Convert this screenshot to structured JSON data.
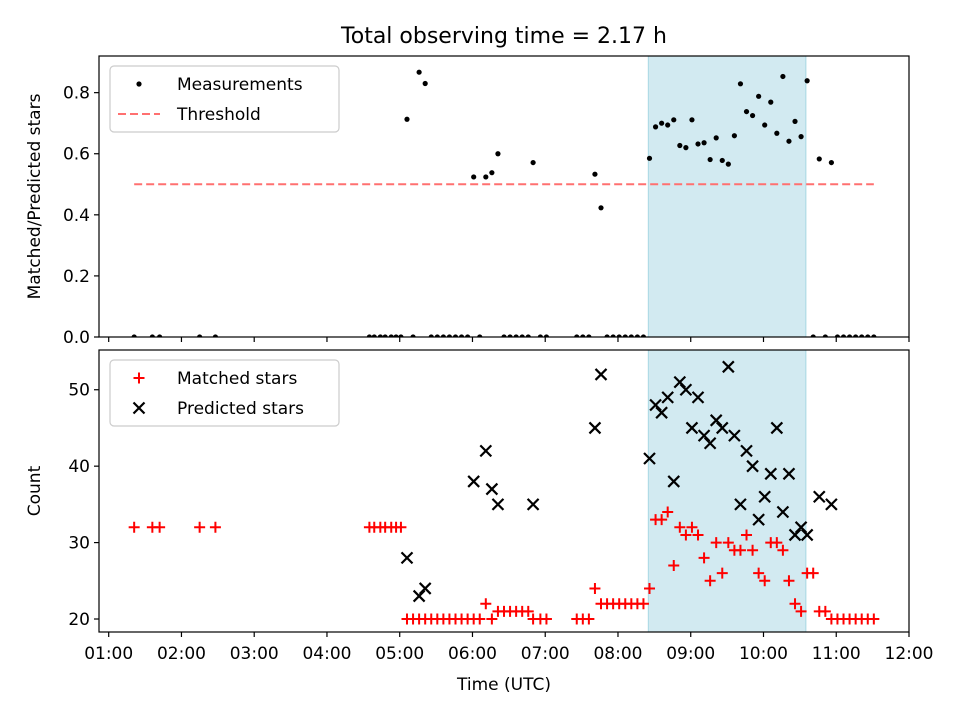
{
  "figure": {
    "title": "Total observing time = 2.17 h"
  },
  "chart_data": [
    {
      "type": "scatter",
      "title": "Total observing time = 2.17 h",
      "ylabel": "Matched/Predicted stars",
      "xlabel": "",
      "xlim": [
        "00:52",
        "12:00"
      ],
      "ylim": [
        0,
        0.92
      ],
      "yticks": [
        0.0,
        0.2,
        0.4,
        0.6,
        0.8
      ],
      "ytick_labels": [
        "0.0",
        "0.2",
        "0.4",
        "0.6",
        "0.8"
      ],
      "grid": false,
      "legend_position": "upper-left",
      "highlight_span": {
        "start": "08:25",
        "end": "10:35",
        "color": "#add8e6"
      },
      "series": [
        {
          "name": "Measurements",
          "marker": "dot",
          "color": "#000000",
          "points": [
            [
              "01:21",
              0.0
            ],
            [
              "01:36",
              0.0
            ],
            [
              "01:42",
              0.0
            ],
            [
              "02:15",
              0.0
            ],
            [
              "02:28",
              0.0
            ],
            [
              "04:35",
              0.0
            ],
            [
              "04:39",
              0.0
            ],
            [
              "04:44",
              0.0
            ],
            [
              "04:48",
              0.0
            ],
            [
              "04:53",
              0.0
            ],
            [
              "04:57",
              0.0
            ],
            [
              "05:01",
              0.0
            ],
            [
              "05:06",
              0.713
            ],
            [
              "05:11",
              0.0
            ],
            [
              "05:16",
              0.867
            ],
            [
              "05:21",
              0.83
            ],
            [
              "05:26",
              0.0
            ],
            [
              "05:31",
              0.0
            ],
            [
              "05:36",
              0.0
            ],
            [
              "05:41",
              0.0
            ],
            [
              "05:46",
              0.0
            ],
            [
              "05:51",
              0.0
            ],
            [
              "05:56",
              0.0
            ],
            [
              "06:01",
              0.524
            ],
            [
              "06:06",
              0.0
            ],
            [
              "06:11",
              0.524
            ],
            [
              "06:16",
              0.538
            ],
            [
              "06:21",
              0.6
            ],
            [
              "06:26",
              0.0
            ],
            [
              "06:31",
              0.0
            ],
            [
              "06:36",
              0.0
            ],
            [
              "06:41",
              0.0
            ],
            [
              "06:46",
              0.0
            ],
            [
              "06:50",
              0.571
            ],
            [
              "06:56",
              0.0
            ],
            [
              "07:01",
              0.0
            ],
            [
              "07:26",
              0.0
            ],
            [
              "07:31",
              0.0
            ],
            [
              "07:36",
              0.0
            ],
            [
              "07:41",
              0.533
            ],
            [
              "07:46",
              0.423
            ],
            [
              "07:51",
              0.0
            ],
            [
              "07:56",
              0.0
            ],
            [
              "08:01",
              0.0
            ],
            [
              "08:06",
              0.0
            ],
            [
              "08:11",
              0.0
            ],
            [
              "08:16",
              0.0
            ],
            [
              "08:21",
              0.0
            ],
            [
              "08:26",
              0.585
            ],
            [
              "08:31",
              0.688
            ],
            [
              "08:36",
              0.7
            ],
            [
              "08:41",
              0.694
            ],
            [
              "08:46",
              0.711
            ],
            [
              "08:51",
              0.627
            ],
            [
              "08:56",
              0.62
            ],
            [
              "09:01",
              0.711
            ],
            [
              "09:06",
              0.632
            ],
            [
              "09:11",
              0.636
            ],
            [
              "09:16",
              0.581
            ],
            [
              "09:21",
              0.652
            ],
            [
              "09:26",
              0.578
            ],
            [
              "09:31",
              0.566
            ],
            [
              "09:36",
              0.659
            ],
            [
              "09:41",
              0.829
            ],
            [
              "09:46",
              0.738
            ],
            [
              "09:51",
              0.725
            ],
            [
              "09:56",
              0.788
            ],
            [
              "10:01",
              0.694
            ],
            [
              "10:06",
              0.769
            ],
            [
              "10:11",
              0.667
            ],
            [
              "10:16",
              0.853
            ],
            [
              "10:21",
              0.641
            ],
            [
              "10:26",
              0.706
            ],
            [
              "10:31",
              0.656
            ],
            [
              "10:36",
              0.839
            ],
            [
              "10:41",
              0.0
            ],
            [
              "10:46",
              0.583
            ],
            [
              "10:51",
              0.0
            ],
            [
              "10:56",
              0.571
            ],
            [
              "11:01",
              0.0
            ],
            [
              "11:06",
              0.0
            ],
            [
              "11:11",
              0.0
            ],
            [
              "11:16",
              0.0
            ],
            [
              "11:21",
              0.0
            ],
            [
              "11:26",
              0.0
            ],
            [
              "11:31",
              0.0
            ]
          ]
        },
        {
          "name": "Threshold",
          "marker": "dashed-line",
          "color": "#ff7070",
          "points": [
            [
              "01:21",
              0.5
            ],
            [
              "11:31",
              0.5
            ]
          ]
        }
      ]
    },
    {
      "type": "scatter",
      "title": "",
      "ylabel": "Count",
      "xlabel": "Time (UTC)",
      "xlim": [
        "00:52",
        "12:00"
      ],
      "ylim": [
        18.3,
        55.2
      ],
      "yticks": [
        20,
        30,
        40,
        50
      ],
      "ytick_labels": [
        "20",
        "30",
        "40",
        "50"
      ],
      "xticks": [
        "01:00",
        "02:00",
        "03:00",
        "04:00",
        "05:00",
        "06:00",
        "07:00",
        "08:00",
        "09:00",
        "10:00",
        "11:00",
        "12:00"
      ],
      "grid": false,
      "legend_position": "upper-left",
      "highlight_span": {
        "start": "08:25",
        "end": "10:35",
        "color": "#add8e6"
      },
      "series": [
        {
          "name": "Matched stars",
          "marker": "plus",
          "color": "#ff0000",
          "points": [
            [
              "01:21",
              32
            ],
            [
              "01:36",
              32
            ],
            [
              "01:42",
              32
            ],
            [
              "02:15",
              32
            ],
            [
              "02:28",
              32
            ],
            [
              "04:35",
              32
            ],
            [
              "04:39",
              32
            ],
            [
              "04:44",
              32
            ],
            [
              "04:48",
              32
            ],
            [
              "04:53",
              32
            ],
            [
              "04:57",
              32
            ],
            [
              "05:01",
              32
            ],
            [
              "05:06",
              20
            ],
            [
              "05:11",
              20
            ],
            [
              "05:16",
              20
            ],
            [
              "05:21",
              20
            ],
            [
              "05:26",
              20
            ],
            [
              "05:31",
              20
            ],
            [
              "05:36",
              20
            ],
            [
              "05:41",
              20
            ],
            [
              "05:46",
              20
            ],
            [
              "05:51",
              20
            ],
            [
              "05:56",
              20
            ],
            [
              "06:01",
              20
            ],
            [
              "06:06",
              20
            ],
            [
              "06:11",
              22
            ],
            [
              "06:16",
              20
            ],
            [
              "06:21",
              21
            ],
            [
              "06:26",
              21
            ],
            [
              "06:31",
              21
            ],
            [
              "06:36",
              21
            ],
            [
              "06:41",
              21
            ],
            [
              "06:46",
              21
            ],
            [
              "06:50",
              20
            ],
            [
              "06:56",
              20
            ],
            [
              "07:01",
              20
            ],
            [
              "07:26",
              20
            ],
            [
              "07:31",
              20
            ],
            [
              "07:36",
              20
            ],
            [
              "07:41",
              24
            ],
            [
              "07:46",
              22
            ],
            [
              "07:51",
              22
            ],
            [
              "07:56",
              22
            ],
            [
              "08:01",
              22
            ],
            [
              "08:06",
              22
            ],
            [
              "08:11",
              22
            ],
            [
              "08:16",
              22
            ],
            [
              "08:21",
              22
            ],
            [
              "08:26",
              24
            ],
            [
              "08:31",
              33
            ],
            [
              "08:36",
              33
            ],
            [
              "08:41",
              34
            ],
            [
              "08:46",
              27
            ],
            [
              "08:51",
              32
            ],
            [
              "08:56",
              31
            ],
            [
              "09:01",
              32
            ],
            [
              "09:06",
              31
            ],
            [
              "09:11",
              28
            ],
            [
              "09:16",
              25
            ],
            [
              "09:21",
              30
            ],
            [
              "09:26",
              26
            ],
            [
              "09:31",
              30
            ],
            [
              "09:36",
              29
            ],
            [
              "09:41",
              29
            ],
            [
              "09:46",
              31
            ],
            [
              "09:51",
              29
            ],
            [
              "09:56",
              26
            ],
            [
              "10:01",
              25
            ],
            [
              "10:06",
              30
            ],
            [
              "10:11",
              30
            ],
            [
              "10:16",
              29
            ],
            [
              "10:21",
              25
            ],
            [
              "10:26",
              22
            ],
            [
              "10:31",
              21
            ],
            [
              "10:36",
              26
            ],
            [
              "10:41",
              26
            ],
            [
              "10:46",
              21
            ],
            [
              "10:51",
              21
            ],
            [
              "10:56",
              20
            ],
            [
              "11:01",
              20
            ],
            [
              "11:06",
              20
            ],
            [
              "11:11",
              20
            ],
            [
              "11:16",
              20
            ],
            [
              "11:21",
              20
            ],
            [
              "11:26",
              20
            ],
            [
              "11:31",
              20
            ]
          ]
        },
        {
          "name": "Predicted stars",
          "marker": "x",
          "color": "#000000",
          "points": [
            [
              "05:06",
              28
            ],
            [
              "05:16",
              23
            ],
            [
              "05:21",
              24
            ],
            [
              "06:01",
              38
            ],
            [
              "06:11",
              42
            ],
            [
              "06:16",
              37
            ],
            [
              "06:21",
              35
            ],
            [
              "06:50",
              35
            ],
            [
              "07:41",
              45
            ],
            [
              "07:46",
              52
            ],
            [
              "08:26",
              41
            ],
            [
              "08:31",
              48
            ],
            [
              "08:36",
              47
            ],
            [
              "08:41",
              49
            ],
            [
              "08:46",
              38
            ],
            [
              "08:51",
              51
            ],
            [
              "08:56",
              50
            ],
            [
              "09:01",
              45
            ],
            [
              "09:06",
              49
            ],
            [
              "09:11",
              44
            ],
            [
              "09:16",
              43
            ],
            [
              "09:21",
              46
            ],
            [
              "09:26",
              45
            ],
            [
              "09:31",
              53
            ],
            [
              "09:36",
              44
            ],
            [
              "09:41",
              35
            ],
            [
              "09:46",
              42
            ],
            [
              "09:51",
              40
            ],
            [
              "09:56",
              33
            ],
            [
              "10:01",
              36
            ],
            [
              "10:06",
              39
            ],
            [
              "10:11",
              45
            ],
            [
              "10:16",
              34
            ],
            [
              "10:21",
              39
            ],
            [
              "10:26",
              31
            ],
            [
              "10:31",
              32
            ],
            [
              "10:36",
              31
            ],
            [
              "10:46",
              36
            ],
            [
              "10:56",
              35
            ]
          ]
        }
      ]
    }
  ]
}
